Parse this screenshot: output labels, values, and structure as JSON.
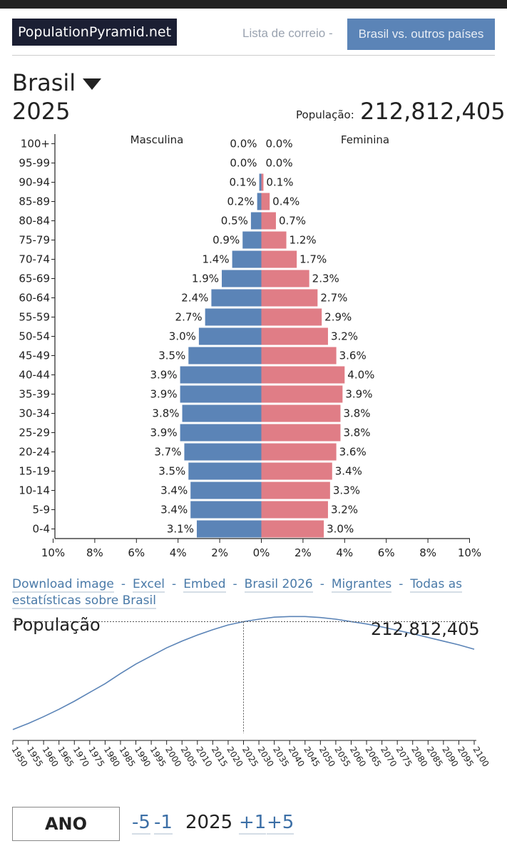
{
  "header": {
    "brand": "PopulationPyramid.net",
    "mailing_list": "Lista de correio -",
    "compare": "Brasil vs. outros países"
  },
  "country": "Brasil",
  "year": "2025",
  "population_label": "População:",
  "population_value": "212,812,405",
  "chart_data": [
    {
      "type": "bar",
      "orientation": "horizontal-pyramid",
      "categories": [
        "100+",
        "95-99",
        "90-94",
        "85-89",
        "80-84",
        "75-79",
        "70-74",
        "65-69",
        "60-64",
        "55-59",
        "50-54",
        "45-49",
        "40-44",
        "35-39",
        "30-34",
        "25-29",
        "20-24",
        "15-19",
        "10-14",
        "5-9",
        "0-4"
      ],
      "series": [
        {
          "name": "Masculina",
          "values": [
            0.0,
            0.0,
            0.1,
            0.2,
            0.5,
            0.9,
            1.4,
            1.9,
            2.4,
            2.7,
            3.0,
            3.5,
            3.9,
            3.9,
            3.8,
            3.9,
            3.7,
            3.5,
            3.4,
            3.4,
            3.1
          ],
          "labels": [
            "0.0%",
            "0.0%",
            "0.1%",
            "0.2%",
            "0.5%",
            "0.9%",
            "1.4%",
            "1.9%",
            "2.4%",
            "2.7%",
            "3.0%",
            "3.5%",
            "3.9%",
            "3.9%",
            "3.8%",
            "3.9%",
            "3.7%",
            "3.5%",
            "3.4%",
            "3.4%",
            "3.1%"
          ],
          "color": "#5b84b7"
        },
        {
          "name": "Feminina",
          "values": [
            0.0,
            0.0,
            0.1,
            0.4,
            0.7,
            1.2,
            1.7,
            2.3,
            2.7,
            2.9,
            3.2,
            3.6,
            4.0,
            3.9,
            3.8,
            3.8,
            3.6,
            3.4,
            3.3,
            3.2,
            3.0
          ],
          "labels": [
            "0.0%",
            "0.0%",
            "0.1%",
            "0.4%",
            "0.7%",
            "1.2%",
            "1.7%",
            "2.3%",
            "2.7%",
            "2.9%",
            "3.2%",
            "3.6%",
            "4.0%",
            "3.9%",
            "3.8%",
            "3.8%",
            "3.6%",
            "3.4%",
            "3.3%",
            "3.2%",
            "3.0%"
          ],
          "color": "#e07d86"
        }
      ],
      "xticks": [
        "10%",
        "8%",
        "6%",
        "4%",
        "2%",
        "0%",
        "2%",
        "4%",
        "6%",
        "8%",
        "10%"
      ],
      "xlim": [
        -10,
        10
      ],
      "grid": false
    },
    {
      "type": "line",
      "title": "População",
      "current_value_label": "212,812,405",
      "current_year": 2025,
      "x": [
        1950,
        1955,
        1960,
        1965,
        1970,
        1975,
        1980,
        1985,
        1990,
        1995,
        2000,
        2005,
        2010,
        2015,
        2020,
        2025,
        2030,
        2035,
        2040,
        2045,
        2050,
        2055,
        2060,
        2065,
        2070,
        2075,
        2080,
        2085,
        2090,
        2095,
        2100
      ],
      "y": [
        53.0,
        62.0,
        72.0,
        83.0,
        95.0,
        108.0,
        121.0,
        136.0,
        150.0,
        162.0,
        174.0,
        184.0,
        193.0,
        201.0,
        208.0,
        212.8,
        216.5,
        219.5,
        220.5,
        220.5,
        219.0,
        216.5,
        213.0,
        209.5,
        205.0,
        200.0,
        195.0,
        189.5,
        184.0,
        178.5,
        172.0
      ],
      "x_tick_labels": [
        "1950",
        "1955",
        "1960",
        "1965",
        "1970",
        "1975",
        "1980",
        "1985",
        "1990",
        "1995",
        "2000",
        "2005",
        "2010",
        "2015",
        "2020",
        "2025",
        "2030",
        "2035",
        "2040",
        "2045",
        "2050",
        "2055",
        "2060",
        "2065",
        "2070",
        "2075",
        "2080",
        "2085",
        "2090",
        "2095",
        "2100"
      ],
      "color": "#5b84b7"
    }
  ],
  "links": [
    {
      "label": "Download image"
    },
    {
      "label": "Excel"
    },
    {
      "label": "Embed"
    },
    {
      "label": "Brasil 2026"
    },
    {
      "label": "Migrantes"
    },
    {
      "label": "Todas as estatísticas sobre Brasil"
    }
  ],
  "link_separator": "-",
  "year_nav": {
    "label": "ANO",
    "minus5": "-5",
    "minus1": "-1",
    "current": "2025",
    "plus1": "+1",
    "plus5": "+5"
  }
}
